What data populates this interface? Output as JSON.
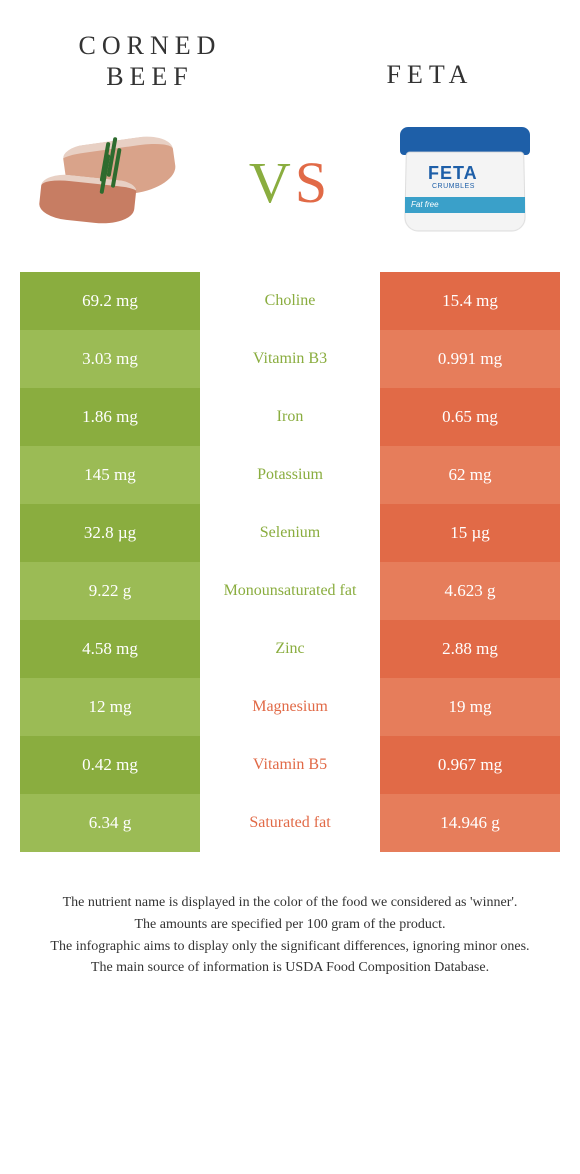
{
  "colors": {
    "left_dark": "#8aad3f",
    "left_light": "#9bbb55",
    "right_dark": "#e16a47",
    "right_light": "#e67d5b",
    "mid_label_left": "#8aad3f",
    "mid_label_right": "#e16a47",
    "text_white": "#ffffff"
  },
  "titles": {
    "left": "CORNED BEEF",
    "right": "FETA",
    "left_lines": [
      "CORNED",
      "BEEF"
    ]
  },
  "vs": {
    "v": "V",
    "s": "S"
  },
  "feta_box": {
    "brand": "FETA",
    "sub": "CRUMBLES",
    "band": "Fat free"
  },
  "rows": [
    {
      "left": "69.2 mg",
      "label": "Choline",
      "right": "15.4 mg",
      "winner": "left"
    },
    {
      "left": "3.03 mg",
      "label": "Vitamin B3",
      "right": "0.991 mg",
      "winner": "left"
    },
    {
      "left": "1.86 mg",
      "label": "Iron",
      "right": "0.65 mg",
      "winner": "left"
    },
    {
      "left": "145 mg",
      "label": "Potassium",
      "right": "62 mg",
      "winner": "left"
    },
    {
      "left": "32.8 µg",
      "label": "Selenium",
      "right": "15 µg",
      "winner": "left"
    },
    {
      "left": "9.22 g",
      "label": "Monounsaturated fat",
      "right": "4.623 g",
      "winner": "left"
    },
    {
      "left": "4.58 mg",
      "label": "Zinc",
      "right": "2.88 mg",
      "winner": "left"
    },
    {
      "left": "12 mg",
      "label": "Magnesium",
      "right": "19 mg",
      "winner": "right"
    },
    {
      "left": "0.42 mg",
      "label": "Vitamin B5",
      "right": "0.967 mg",
      "winner": "right"
    },
    {
      "left": "6.34 g",
      "label": "Saturated fat",
      "right": "14.946 g",
      "winner": "right"
    }
  ],
  "footnotes": [
    "The nutrient name is displayed in the color of the food we considered as 'winner'.",
    "The amounts are specified per 100 gram of the product.",
    "The infographic aims to display only the significant differences, ignoring minor ones.",
    "The main source of information is USDA Food Composition Database."
  ]
}
